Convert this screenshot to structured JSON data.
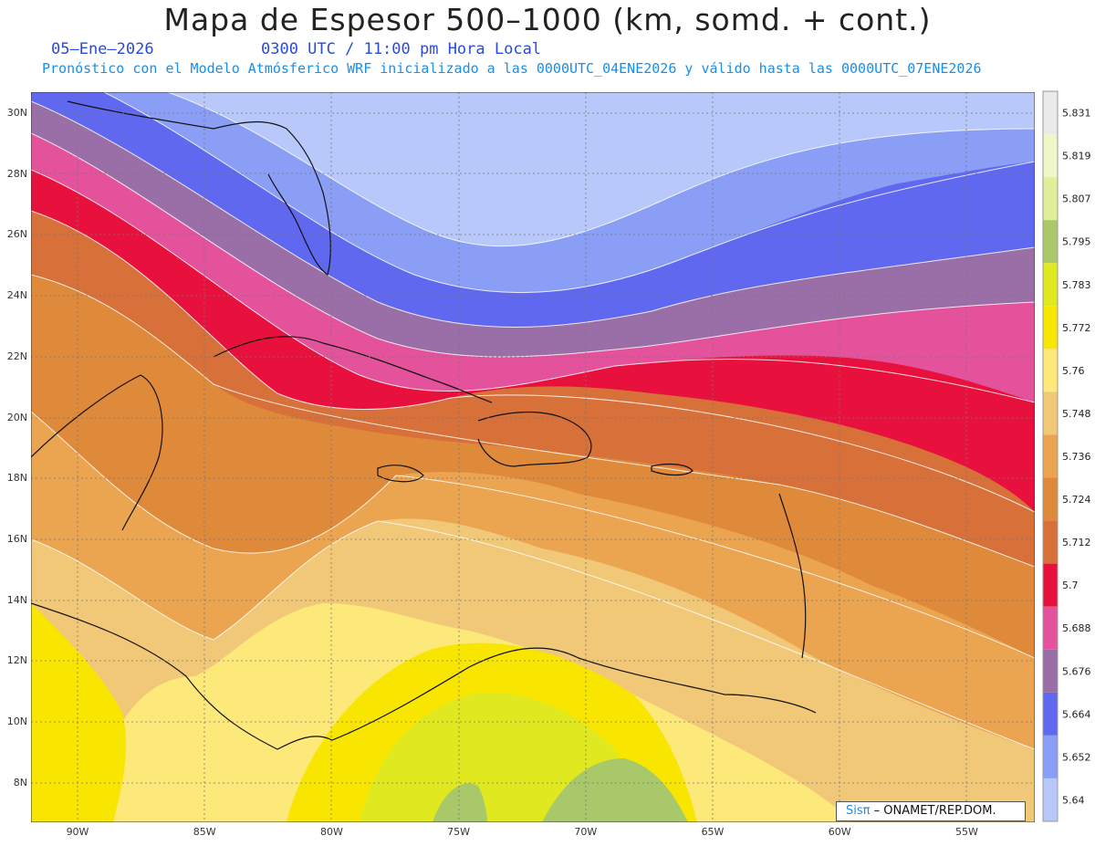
{
  "header": {
    "title": "Mapa de Espesor 500–1000 (km, somd. + cont.)",
    "date": "05–Ene–2026",
    "time": "0300 UTC / 11:00 pm Hora Local",
    "forecast_info": "Pronóstico con el Modelo Atmósferico WRF inicializado a las 0000UTC_04ENE2026 y válido hasta las  0000UTC_07ENE2026"
  },
  "map": {
    "lat_labels": [
      "30N",
      "28N",
      "26N",
      "24N",
      "22N",
      "20N",
      "18N",
      "16N",
      "14N",
      "12N",
      "10N",
      "8N"
    ],
    "lon_labels": [
      "90W",
      "85W",
      "80W",
      "75W",
      "70W",
      "65W",
      "60W",
      "55W"
    ],
    "grid": true
  },
  "legend": {
    "values": [
      "5.831",
      "5.819",
      "5.807",
      "5.795",
      "5.783",
      "5.772",
      "5.76",
      "5.748",
      "5.736",
      "5.724",
      "5.712",
      "5.7",
      "5.688",
      "5.676",
      "5.664",
      "5.652",
      "5.64"
    ],
    "colors": [
      "#eaeaea",
      "#f0f6c8",
      "#e0f09a",
      "#a8c86a",
      "#e0e820",
      "#f8e600",
      "#fde87a",
      "#f0c878",
      "#eba450",
      "#df8a3a",
      "#d8703a",
      "#e8103c",
      "#e4529c",
      "#9a6ea6",
      "#6068f0",
      "#8a9ef6",
      "#b8c8fa"
    ]
  },
  "credit": {
    "brand": "Sisπ",
    "org": " – ONAMET/REP.DOM."
  }
}
